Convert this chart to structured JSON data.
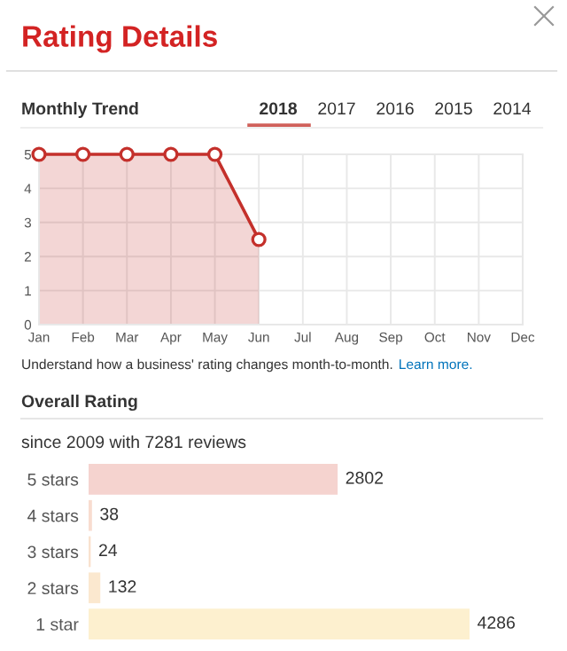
{
  "chart_data": [
    {
      "type": "area",
      "title": "Rating Details",
      "subtitle": "Monthly Trend",
      "categories": [
        "Jan",
        "Feb",
        "Mar",
        "Apr",
        "May",
        "Jun",
        "Jul",
        "Aug",
        "Sep",
        "Oct",
        "Nov",
        "Dec"
      ],
      "series": [
        {
          "color": "#c4302b",
          "values": [
            5,
            5,
            5,
            5,
            5,
            2.5,
            null,
            null,
            null,
            null,
            null,
            null
          ]
        }
      ],
      "ylim": [
        0,
        5
      ],
      "yticks": [
        0,
        1,
        2,
        3,
        4,
        5
      ],
      "grid": true,
      "marker": "circle",
      "line_style": "solid",
      "annotations": [
        "2018",
        "2017",
        "2016",
        "2015",
        "2014",
        "Understand how a business' rating changes month-to-month.",
        "Learn more."
      ]
    },
    {
      "type": "bar",
      "orientation": "horizontal",
      "title": "Overall Rating",
      "subtitle": "since 2009 with 7281 reviews",
      "categories": [
        "5 stars",
        "4 stars",
        "3 stars",
        "2 stars",
        "1 star"
      ],
      "values": [
        2802,
        38,
        24,
        132,
        4286
      ],
      "colors": [
        "#f5d3cf",
        "#f8dccf",
        "#f9e2cf",
        "#fbe8cf",
        "#fdf0cf"
      ],
      "data_labels": true
    }
  ]
}
